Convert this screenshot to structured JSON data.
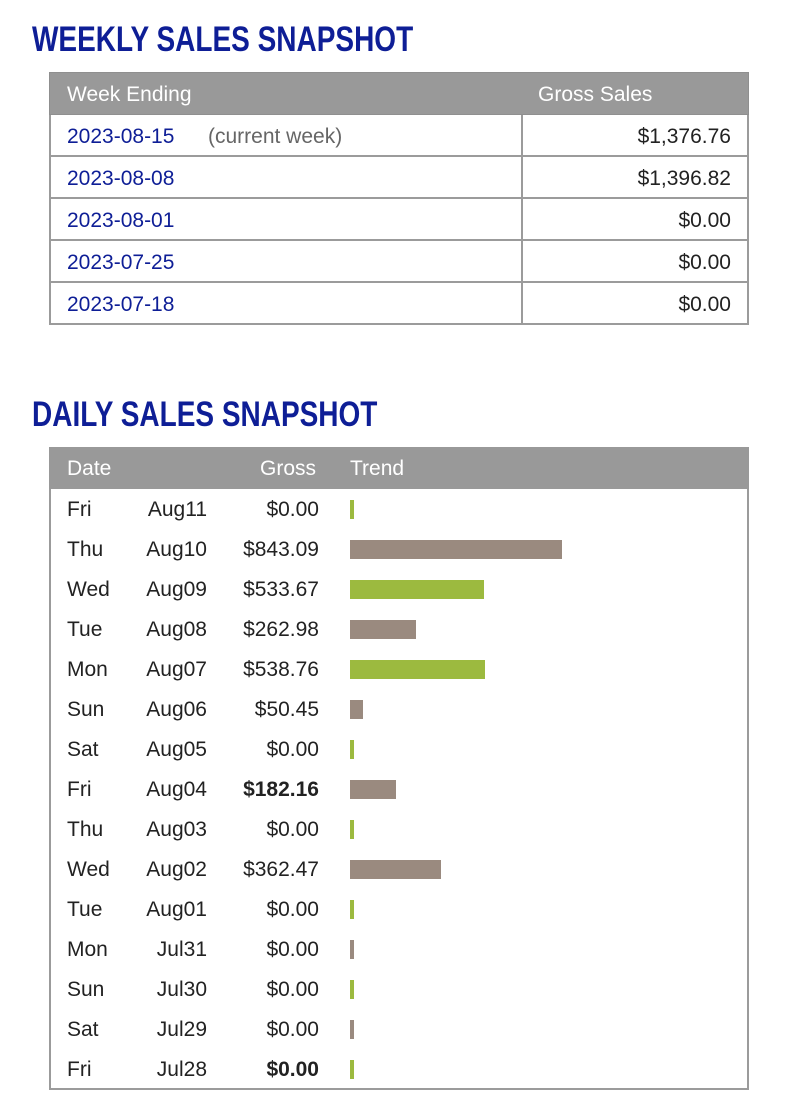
{
  "weekly": {
    "title": "WEEKLY SALES SNAPSHOT",
    "headers": {
      "week_ending": "Week Ending",
      "gross_sales": "Gross Sales"
    },
    "rows": [
      {
        "date": "2023-08-15",
        "note": "(current week)",
        "amount": "$1,376.76"
      },
      {
        "date": "2023-08-08",
        "note": "",
        "amount": "$1,396.82"
      },
      {
        "date": "2023-08-01",
        "note": "",
        "amount": "$0.00"
      },
      {
        "date": "2023-07-25",
        "note": "",
        "amount": "$0.00"
      },
      {
        "date": "2023-07-18",
        "note": "",
        "amount": "$0.00"
      }
    ]
  },
  "daily": {
    "title": "DAILY SALES SNAPSHOT",
    "headers": {
      "date": "Date",
      "gross": "Gross",
      "trend": "Trend"
    },
    "colors": {
      "green": "#9cba3f",
      "gray": "#9a8a7f"
    },
    "rows": [
      {
        "dow": "Fri",
        "md": "Aug11",
        "gross": "$0.00",
        "value": 0,
        "color": "green",
        "bold": false
      },
      {
        "dow": "Thu",
        "md": "Aug10",
        "gross": "$843.09",
        "value": 843.09,
        "color": "gray",
        "bold": false
      },
      {
        "dow": "Wed",
        "md": "Aug09",
        "gross": "$533.67",
        "value": 533.67,
        "color": "green",
        "bold": false
      },
      {
        "dow": "Tue",
        "md": "Aug08",
        "gross": "$262.98",
        "value": 262.98,
        "color": "gray",
        "bold": false
      },
      {
        "dow": "Mon",
        "md": "Aug07",
        "gross": "$538.76",
        "value": 538.76,
        "color": "green",
        "bold": false
      },
      {
        "dow": "Sun",
        "md": "Aug06",
        "gross": "$50.45",
        "value": 50.45,
        "color": "gray",
        "bold": false
      },
      {
        "dow": "Sat",
        "md": "Aug05",
        "gross": "$0.00",
        "value": 0,
        "color": "green",
        "bold": false
      },
      {
        "dow": "Fri",
        "md": "Aug04",
        "gross": "$182.16",
        "value": 182.16,
        "color": "gray",
        "bold": true
      },
      {
        "dow": "Thu",
        "md": "Aug03",
        "gross": "$0.00",
        "value": 0,
        "color": "green",
        "bold": false
      },
      {
        "dow": "Wed",
        "md": "Aug02",
        "gross": "$362.47",
        "value": 362.47,
        "color": "gray",
        "bold": false
      },
      {
        "dow": "Tue",
        "md": "Aug01",
        "gross": "$0.00",
        "value": 0,
        "color": "green",
        "bold": false
      },
      {
        "dow": "Mon",
        "md": "Jul31",
        "gross": "$0.00",
        "value": 0,
        "color": "gray",
        "bold": false
      },
      {
        "dow": "Sun",
        "md": "Jul30",
        "gross": "$0.00",
        "value": 0,
        "color": "green",
        "bold": false
      },
      {
        "dow": "Sat",
        "md": "Jul29",
        "gross": "$0.00",
        "value": 0,
        "color": "gray",
        "bold": false
      },
      {
        "dow": "Fri",
        "md": "Jul28",
        "gross": "$0.00",
        "value": 0,
        "color": "green",
        "bold": true
      }
    ]
  }
}
